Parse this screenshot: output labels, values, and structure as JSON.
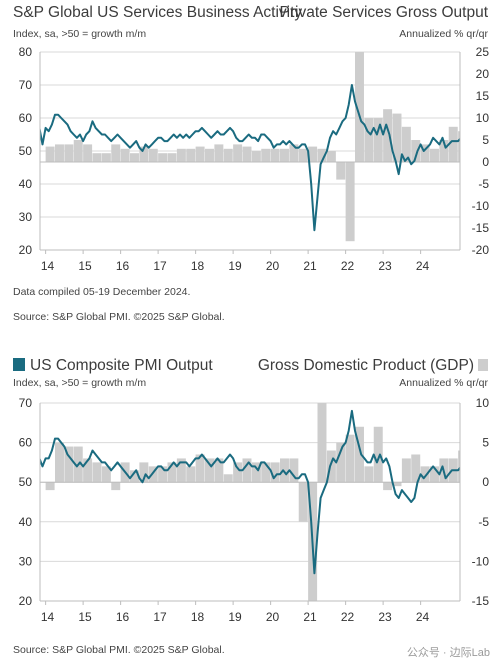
{
  "chart_data": [
    {
      "type": "line+bar",
      "title_left": "S&P Global US Services Business Activity",
      "title_right": "Private Services Gross Output",
      "subtitle_left": "Index, sa, >50 = growth m/m",
      "subtitle_right": "Annualized % qr/qr",
      "x_ticks": [
        "14",
        "15",
        "16",
        "17",
        "18",
        "19",
        "20",
        "21",
        "22",
        "23",
        "24"
      ],
      "left_axis": {
        "min": 20,
        "max": 80,
        "ticks": [
          20,
          30,
          40,
          50,
          60,
          70,
          80
        ]
      },
      "right_axis": {
        "min": -20,
        "max": 25,
        "ticks": [
          -20,
          -15,
          -10,
          -5,
          0,
          5,
          10,
          15,
          20,
          25
        ]
      },
      "line": {
        "name": "S&P Global US Services Business Activity",
        "color": "#1a6b80",
        "x_start": 2013.8333,
        "step": 0.0833333,
        "values": [
          57,
          52,
          57,
          56,
          58,
          61,
          61,
          60,
          59,
          58,
          56,
          55,
          54,
          55,
          53,
          55,
          56,
          59,
          57,
          56,
          55,
          55,
          54,
          53,
          54,
          55,
          54,
          53,
          52,
          51,
          52,
          53,
          51,
          50,
          52,
          51,
          52,
          53,
          54,
          54,
          53,
          53,
          54,
          55,
          54,
          55,
          54,
          55,
          54,
          55,
          56,
          56,
          57,
          56,
          55,
          54,
          55,
          56,
          55,
          55,
          56,
          57,
          56,
          54,
          53,
          53,
          54,
          55,
          54,
          54,
          53,
          55,
          55,
          54,
          53,
          51,
          52,
          52,
          53,
          52,
          53,
          52,
          51,
          51,
          52,
          52,
          50,
          40,
          26,
          36,
          46,
          48,
          50,
          54,
          56,
          55,
          57,
          59,
          60,
          64,
          70,
          65,
          62,
          59,
          58,
          56,
          55,
          57,
          55,
          58,
          55,
          58,
          55,
          50,
          47,
          43,
          49,
          47,
          48,
          46,
          47,
          50,
          52,
          50,
          51,
          52,
          54,
          53,
          52,
          54,
          51,
          52,
          53,
          53,
          53,
          54,
          54,
          56,
          56,
          55,
          56,
          55,
          56,
          56,
          57,
          57
        ],
        "values_hidden_start": 0
      },
      "bars": {
        "name": "Private Services Gross Output",
        "color": "#cdcdcd",
        "x_start": 2014.0,
        "step": 0.25,
        "values": [
          3.5,
          4,
          4,
          5,
          4,
          2,
          2,
          4,
          3,
          2,
          3.5,
          3,
          2,
          2,
          3,
          3,
          3.5,
          3,
          4,
          3,
          4,
          3.5,
          2.5,
          3,
          3,
          3,
          4,
          3,
          3.5,
          3,
          2.5,
          -4,
          -18,
          25,
          10,
          10,
          12,
          11,
          8,
          5,
          4,
          3,
          5,
          8,
          7,
          5,
          2,
          3,
          3,
          6,
          5,
          3,
          1,
          1,
          3,
          4,
          3,
          -1,
          5,
          4
        ]
      },
      "notes": [
        "Data compiled 05-19 December 2024.",
        "Source: S&P Global PMI. ©2025 S&P Global."
      ]
    },
    {
      "type": "line+bar",
      "title_left": "US Composite PMI Output",
      "title_right": "Gross Domestic Product (GDP)",
      "subtitle_left": "Index, sa, >50 = growth m/m",
      "subtitle_right": "Annualized % qr/qr",
      "x_ticks": [
        "14",
        "15",
        "16",
        "17",
        "18",
        "19",
        "20",
        "21",
        "22",
        "23",
        "24"
      ],
      "left_axis": {
        "min": 20,
        "max": 70,
        "ticks": [
          20,
          30,
          40,
          50,
          60,
          70
        ]
      },
      "right_axis": {
        "min": -15,
        "max": 10,
        "ticks": [
          -15,
          -10,
          -5,
          0,
          5,
          10
        ]
      },
      "line": {
        "name": "US Composite PMI Output",
        "color": "#1a6b80",
        "x_start": 2013.8333,
        "step": 0.0833333,
        "values": [
          56,
          54,
          56,
          56,
          58,
          61,
          61,
          60,
          59,
          57,
          56,
          55,
          54,
          55,
          54,
          55,
          56,
          58,
          57,
          56,
          55,
          55,
          54,
          53,
          54,
          55,
          54,
          53,
          52,
          51,
          52,
          53,
          51,
          50,
          52,
          51,
          52,
          53,
          54,
          54,
          53,
          53,
          54,
          55,
          54,
          55,
          55,
          55,
          54,
          55,
          56,
          56,
          57,
          56,
          55,
          54,
          55,
          56,
          55,
          55,
          56,
          57,
          56,
          54,
          53,
          53,
          54,
          55,
          54,
          54,
          53,
          55,
          55,
          54,
          53,
          51,
          52,
          52,
          53,
          52,
          53,
          52,
          51,
          51,
          52,
          52,
          50,
          40,
          27,
          37,
          46,
          48,
          50,
          54,
          56,
          55,
          57,
          59,
          60,
          63,
          68,
          63,
          60,
          57,
          56,
          55,
          55,
          57,
          55,
          57,
          55,
          56,
          54,
          50,
          47,
          46,
          48,
          47,
          46,
          45,
          46,
          50,
          52,
          51,
          52,
          53,
          54,
          53,
          52,
          54,
          51,
          52,
          53,
          53,
          53,
          54,
          54,
          55,
          54,
          54,
          55,
          54,
          55,
          55,
          55,
          55
        ]
      },
      "bars": {
        "name": "Gross Domestic Product (GDP)",
        "color": "#cdcdcd",
        "x_start": 2014.0,
        "step": 0.25,
        "values": [
          -1,
          5,
          4.5,
          4.5,
          3,
          2.5,
          2,
          -1,
          2.5,
          1.5,
          2.5,
          2,
          2,
          2.5,
          3,
          2,
          3.5,
          3,
          3,
          1,
          2.5,
          3,
          2.5,
          2.5,
          2.5,
          3,
          3,
          -5,
          -28,
          35,
          4,
          5,
          6,
          7,
          2,
          7,
          -1,
          -0.5,
          3,
          3.5,
          2,
          2,
          3,
          3,
          4,
          4,
          2,
          3,
          2,
          3.5,
          3,
          3,
          2.5,
          2,
          1.5,
          3,
          3,
          2.5,
          2.5
        ]
      },
      "notes": [
        "Source: S&P Global PMI. ©2025 S&P Global."
      ]
    }
  ],
  "watermark": "公众号 · 边际Lab"
}
